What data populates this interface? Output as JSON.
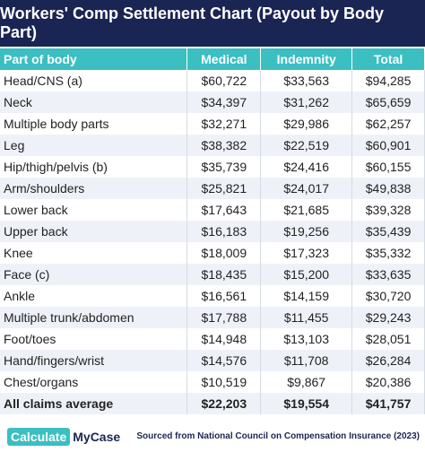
{
  "header": {
    "title": "Workers' Comp Settlement Chart (Payout by Body Part)"
  },
  "table": {
    "columns": [
      "Part of body",
      "Medical",
      "Indemnity",
      "Total"
    ],
    "rows": [
      [
        "Head/CNS (a)",
        "$60,722",
        "$33,563",
        "$94,285"
      ],
      [
        "Neck",
        "$34,397",
        "$31,262",
        "$65,659"
      ],
      [
        "Multiple body parts",
        "$32,271",
        "$29,986",
        "$62,257"
      ],
      [
        "Leg",
        "$38,382",
        "$22,519",
        "$60,901"
      ],
      [
        "Hip/thigh/pelvis (b)",
        "$35,739",
        "$24,416",
        "$60,155"
      ],
      [
        "Arm/shoulders",
        "$25,821",
        "$24,017",
        "$49,838"
      ],
      [
        "Lower back",
        "$17,643",
        "$21,685",
        "$39,328"
      ],
      [
        "Upper back",
        "$16,183",
        "$19,256",
        "$35,439"
      ],
      [
        "Knee",
        "$18,009",
        "$17,323",
        "$35,332"
      ],
      [
        "Face (c)",
        "$18,435",
        "$15,200",
        "$33,635"
      ],
      [
        "Ankle",
        "$16,561",
        "$14,159",
        "$30,720"
      ],
      [
        "Multiple trunk/abdomen",
        "$17,788",
        "$11,455",
        "$29,243"
      ],
      [
        "Foot/toes",
        "$14,948",
        "$13,103",
        "$28,051"
      ],
      [
        "Hand/fingers/wrist",
        "$14,576",
        "$11,708",
        "$26,284"
      ],
      [
        "Chest/organs",
        "$10,519",
        "$9,867",
        "$20,386"
      ],
      [
        "All claims average",
        "$22,203",
        "$19,554",
        "$41,757"
      ]
    ]
  },
  "footer": {
    "logo_left": "Calculate",
    "logo_right": "MyCase",
    "source": "Sourced from National Council on Compensation Insurance (2023)"
  }
}
